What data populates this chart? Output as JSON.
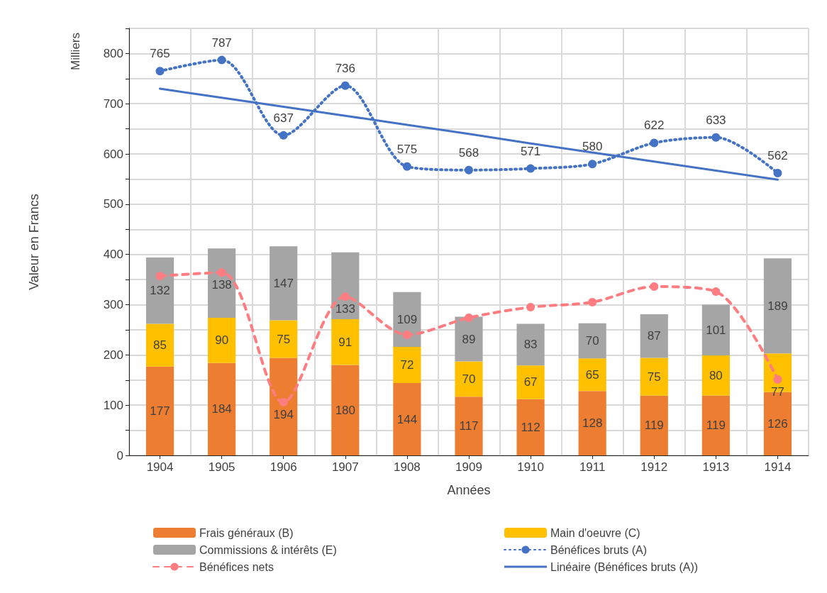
{
  "chart_data": {
    "type": "bar",
    "stacked": true,
    "xlabel": "Années",
    "ylabel": "Valeur en Francs",
    "annotations": [
      "Milliers"
    ],
    "categories": [
      "1904",
      "1905",
      "1906",
      "1907",
      "1908",
      "1909",
      "1910",
      "1911",
      "1912",
      "1913",
      "1914"
    ],
    "series": [
      {
        "name": "Frais généraux (B)",
        "color": "#ed7d31",
        "values": [
          177,
          184,
          194,
          180,
          144,
          117,
          112,
          128,
          119,
          119,
          126
        ],
        "value_labels": [
          "177",
          "184",
          "194",
          "180",
          "144",
          "117",
          "112",
          "128",
          "119",
          "119",
          "126"
        ]
      },
      {
        "name": "Main d'oeuvre (C)",
        "color": "#ffc000",
        "values": [
          85,
          90,
          75,
          91,
          72,
          70,
          67,
          65,
          75,
          80,
          77
        ],
        "value_labels": [
          "85",
          "90",
          "75",
          "91",
          "72",
          "70",
          "67",
          "65",
          "75",
          "80",
          "77"
        ]
      },
      {
        "name": "Commissions & intérêts (E)",
        "color": "#a5a5a5",
        "values": [
          132,
          138,
          147,
          133,
          109,
          89,
          83,
          70,
          87,
          101,
          189
        ],
        "value_labels": [
          "132",
          "138",
          "147",
          "133",
          "109",
          "89",
          "83",
          "70",
          "87",
          "101",
          "189"
        ]
      },
      {
        "name": "Bénéfices bruts (A)",
        "type": "line",
        "color": "#4472c4",
        "marker": "circle",
        "line_style": "dotted",
        "values": [
          765,
          787,
          637,
          736,
          575,
          568,
          571,
          580,
          622,
          633,
          562
        ],
        "value_labels": [
          "765",
          "787",
          "637",
          "736",
          "575",
          "568",
          "571",
          "580",
          "622",
          "633",
          "562"
        ]
      },
      {
        "name": "Bénéfices nets",
        "type": "line",
        "color": "#ff7c80",
        "marker": "circle",
        "line_style": "dashed",
        "values": [
          357,
          364,
          106,
          316,
          240,
          274,
          295,
          305,
          336,
          326,
          151
        ]
      },
      {
        "name": "Linéaire (Bénéfices bruts (A))",
        "type": "line",
        "color": "#4472c4",
        "marker": "none",
        "line_style": "solid",
        "values": [
          730,
          712,
          694,
          676,
          658,
          640,
          621,
          603,
          585,
          567,
          549
        ]
      }
    ],
    "ylim": [
      0,
      850
    ],
    "yticks": [
      0,
      {
        "value": 50,
        "label": null
      },
      100,
      {
        "value": 150,
        "label": null
      },
      200,
      {
        "value": 250,
        "label": null
      },
      300,
      {
        "value": 350,
        "label": null
      },
      400,
      {
        "value": 450,
        "label": null
      },
      500,
      {
        "value": 550,
        "label": null
      },
      600,
      {
        "value": 650,
        "label": null
      },
      700,
      {
        "value": 750,
        "label": null
      },
      800,
      {
        "value": 850,
        "label": null
      }
    ],
    "grid": true,
    "legend": "bottom"
  }
}
